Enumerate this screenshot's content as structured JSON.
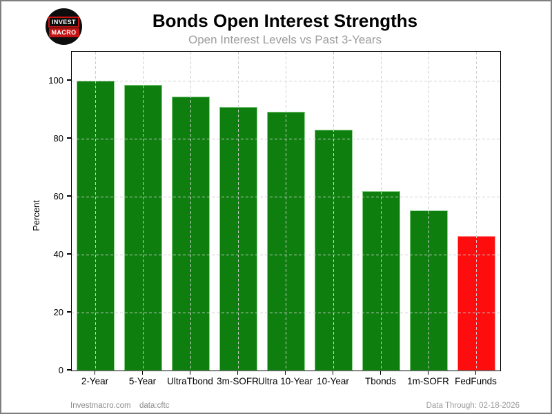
{
  "header": {
    "title": "Bonds Open Interest Strengths",
    "subtitle": "Open Interest Levels vs Past 3-Years",
    "logo": {
      "line1": "INVEST",
      "line2": "MACRO"
    }
  },
  "footer": {
    "site": "Investmacro.com",
    "source": "data:cftc",
    "data_through": "Data Through: 02-18-2026"
  },
  "chart_data": {
    "type": "bar",
    "title": "Bonds Open Interest Strengths",
    "subtitle": "Open Interest Levels vs Past 3-Years",
    "xlabel": "",
    "ylabel": "Percent",
    "ylim": [
      0,
      110
    ],
    "yticks": [
      0,
      20,
      40,
      60,
      80,
      100
    ],
    "grid": "dashed both-axes light-gray drawn over bars",
    "legend": "none",
    "categories": [
      "2-Year",
      "5-Year",
      "UltraTbond",
      "3m-SOFR",
      "Ultra 10-Year",
      "10-Year",
      "Tbonds",
      "1m-SOFR",
      "FedFunds"
    ],
    "values": [
      100,
      98.5,
      94.5,
      91,
      89.3,
      83.2,
      61.8,
      55.3,
      46.5
    ],
    "bar_colors": [
      "#0e7e0e",
      "#0e7e0e",
      "#0e7e0e",
      "#0e7e0e",
      "#0e7e0e",
      "#0e7e0e",
      "#0e7e0e",
      "#0e7e0e",
      "#fd0d0d"
    ],
    "bar_edge_colors": [
      "#86cf86",
      "#86cf86",
      "#86cf86",
      "#86cf86",
      "#86cf86",
      "#86cf86",
      "#86cf86",
      "#86cf86",
      "#ff9a9a"
    ],
    "status_colors": {
      "strong": "#0e7e0e",
      "weak": "#fd0d0d"
    },
    "gridline_color": "#cdcdcd",
    "axis_color": "#000000"
  }
}
